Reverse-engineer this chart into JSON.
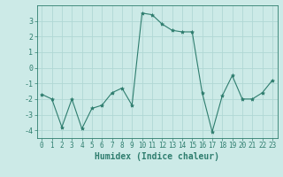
{
  "x": [
    0,
    1,
    2,
    3,
    4,
    5,
    6,
    7,
    8,
    9,
    10,
    11,
    12,
    13,
    14,
    15,
    16,
    17,
    18,
    19,
    20,
    21,
    22,
    23
  ],
  "y": [
    -1.7,
    -2.0,
    -3.8,
    -2.0,
    -3.9,
    -2.6,
    -2.4,
    -1.6,
    -1.3,
    -2.4,
    3.5,
    3.4,
    2.8,
    2.4,
    2.3,
    2.3,
    -1.6,
    -4.1,
    -1.8,
    -0.5,
    -2.0,
    -2.0,
    -1.6,
    -0.8
  ],
  "line_color": "#2e7d6e",
  "marker": "*",
  "marker_size": 3,
  "xlabel": "Humidex (Indice chaleur)",
  "xlabel_fontsize": 7,
  "xlim": [
    -0.5,
    23.5
  ],
  "ylim": [
    -4.5,
    4.0
  ],
  "yticks": [
    -4,
    -3,
    -2,
    -1,
    0,
    1,
    2,
    3
  ],
  "xticks": [
    0,
    1,
    2,
    3,
    4,
    5,
    6,
    7,
    8,
    9,
    10,
    11,
    12,
    13,
    14,
    15,
    16,
    17,
    18,
    19,
    20,
    21,
    22,
    23
  ],
  "bg_color": "#cceae7",
  "grid_color": "#b0d8d4",
  "tick_color": "#2e7d6e",
  "axis_color": "#2e7d6e",
  "label_color": "#2e7d6e",
  "tick_fontsize": 5.5,
  "ytick_fontsize": 6.0
}
